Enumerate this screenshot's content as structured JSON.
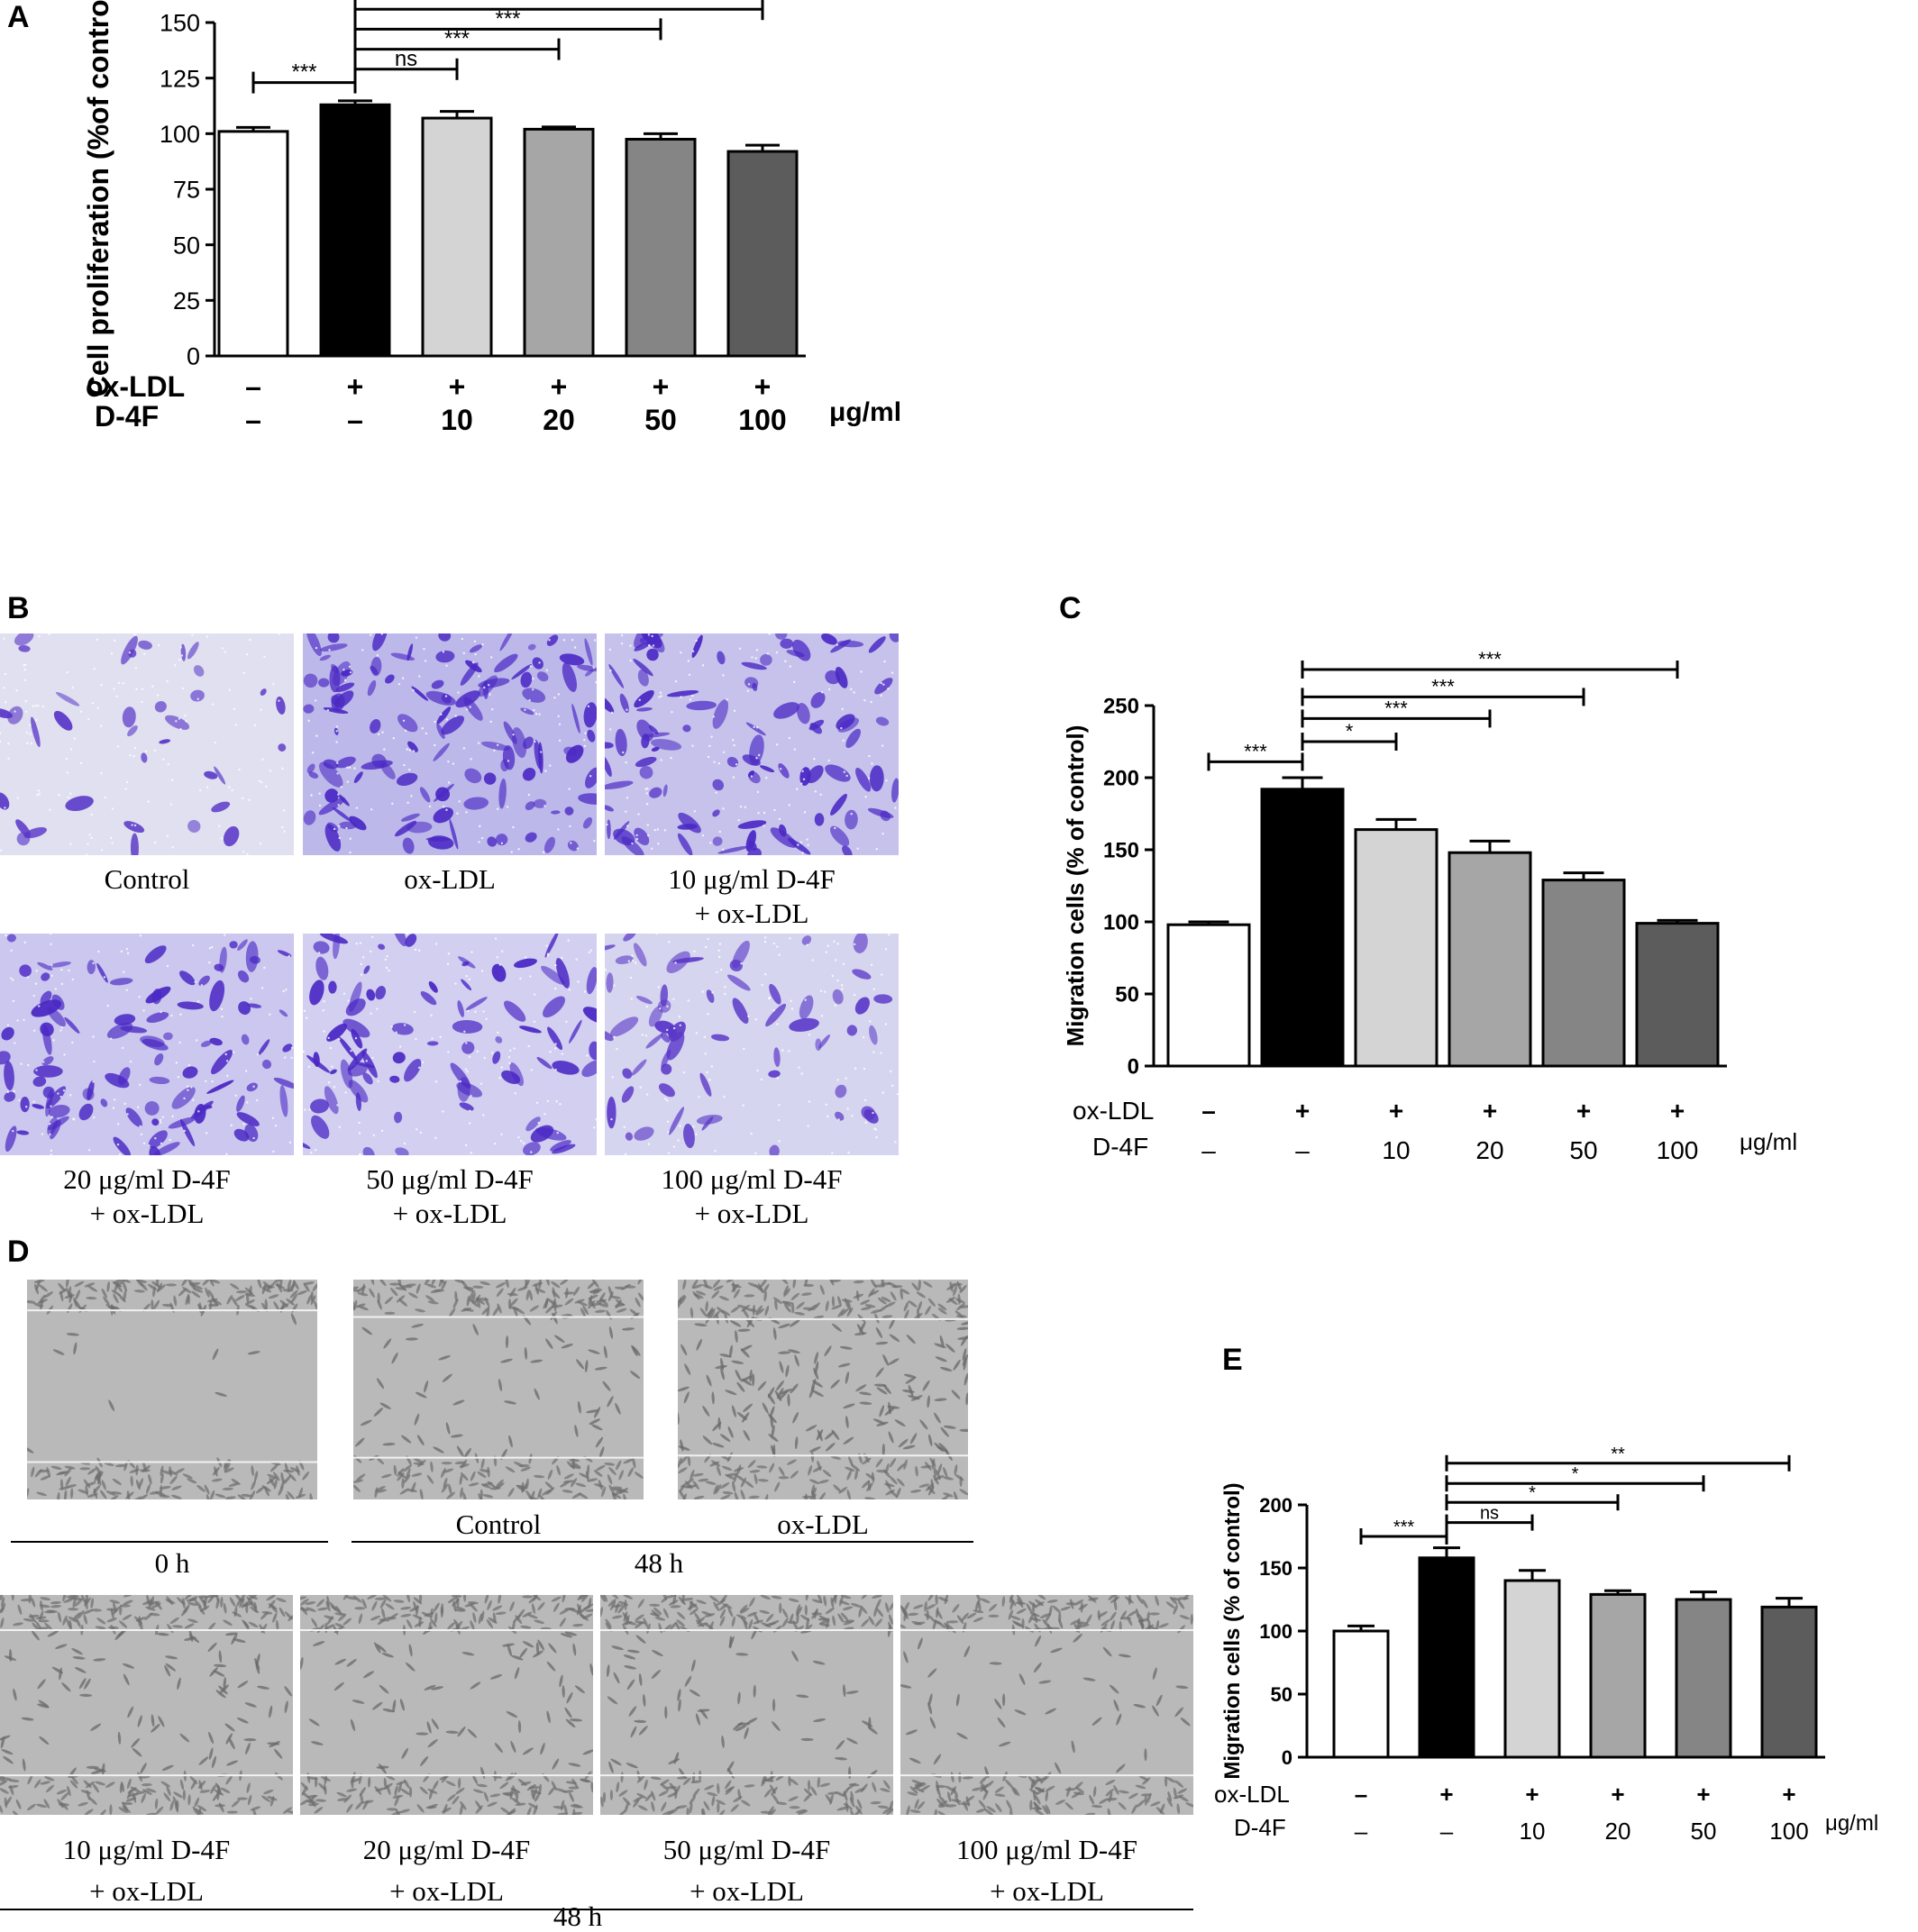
{
  "panels": {
    "A": "A",
    "B": "B",
    "C": "C",
    "D": "D",
    "E": "E"
  },
  "chart_data": [
    {
      "id": "A",
      "type": "bar",
      "ylabel": "Cell proliferation (%of control)",
      "ylim": [
        0,
        150
      ],
      "yticks": [
        0,
        25,
        50,
        75,
        100,
        125,
        150
      ],
      "values": [
        101,
        113,
        107,
        102,
        97.5,
        92
      ],
      "errors": [
        1.8,
        1.8,
        3,
        1,
        2.5,
        2.8
      ],
      "colors": [
        "#ffffff",
        "#000000",
        "#d4d4d4",
        "#a6a6a6",
        "#858585",
        "#5c5c5c"
      ],
      "row_labels": [
        "ox-LDL",
        "D-4F"
      ],
      "oxldl": [
        "–",
        "+",
        "+",
        "+",
        "+",
        "+"
      ],
      "d4f": [
        "–",
        "–",
        "10",
        "20",
        "50",
        "100"
      ],
      "unit": "μg/ml",
      "brackets": [
        {
          "from": 0,
          "to": 1,
          "label": "***",
          "y": 123
        },
        {
          "from": 1,
          "to": 2,
          "label": "ns",
          "y": 129
        },
        {
          "from": 1,
          "to": 3,
          "label": "***",
          "y": 138
        },
        {
          "from": 1,
          "to": 4,
          "label": "***",
          "y": 147
        },
        {
          "from": 1,
          "to": 5,
          "label": "***",
          "y": 156
        }
      ]
    },
    {
      "id": "C",
      "type": "bar",
      "ylabel": "Migration cells (% of control)",
      "ylim": [
        0,
        250
      ],
      "yticks": [
        0,
        50,
        100,
        150,
        200,
        250
      ],
      "values": [
        98,
        192,
        164,
        148,
        129,
        99
      ],
      "errors": [
        2,
        8,
        7,
        8,
        5,
        2
      ],
      "colors": [
        "#ffffff",
        "#000000",
        "#d4d4d4",
        "#a6a6a6",
        "#858585",
        "#5c5c5c"
      ],
      "row_labels": [
        "ox-LDL",
        "D-4F"
      ],
      "oxldl": [
        "–",
        "+",
        "+",
        "+",
        "+",
        "+"
      ],
      "d4f": [
        "–",
        "–",
        "10",
        "20",
        "50",
        "100"
      ],
      "unit": "μg/ml",
      "brackets": [
        {
          "from": 0,
          "to": 1,
          "label": "***",
          "y": 211
        },
        {
          "from": 1,
          "to": 2,
          "label": "*",
          "y": 225
        },
        {
          "from": 1,
          "to": 3,
          "label": "***",
          "y": 241
        },
        {
          "from": 1,
          "to": 4,
          "label": "***",
          "y": 256
        },
        {
          "from": 1,
          "to": 5,
          "label": "***",
          "y": 275
        }
      ]
    },
    {
      "id": "E",
      "type": "bar",
      "ylabel": "Migration cells (% of control)",
      "ylim": [
        0,
        200
      ],
      "yticks": [
        0,
        50,
        100,
        150,
        200
      ],
      "values": [
        100,
        158,
        140,
        129,
        125,
        119
      ],
      "errors": [
        4,
        8,
        8,
        3,
        6,
        7
      ],
      "colors": [
        "#ffffff",
        "#000000",
        "#d4d4d4",
        "#a6a6a6",
        "#858585",
        "#5c5c5c"
      ],
      "row_labels": [
        "ox-LDL",
        "D-4F"
      ],
      "oxldl": [
        "–",
        "+",
        "+",
        "+",
        "+",
        "+"
      ],
      "d4f": [
        "–",
        "–",
        "10",
        "20",
        "50",
        "100"
      ],
      "unit": "μg/ml",
      "brackets": [
        {
          "from": 0,
          "to": 1,
          "label": "***",
          "y": 175
        },
        {
          "from": 1,
          "to": 2,
          "label": "ns",
          "y": 186
        },
        {
          "from": 1,
          "to": 3,
          "label": "*",
          "y": 202
        },
        {
          "from": 1,
          "to": 4,
          "label": "*",
          "y": 217
        },
        {
          "from": 1,
          "to": 5,
          "label": "**",
          "y": 233
        }
      ]
    }
  ],
  "panelB": {
    "captions": [
      {
        "l1": "Control",
        "l2": ""
      },
      {
        "l1": "ox-LDL",
        "l2": ""
      },
      {
        "l1": "10 μg/ml D-4F",
        "l2": "+ ox-LDL"
      },
      {
        "l1": "20 μg/ml D-4F",
        "l2": "+ ox-LDL"
      },
      {
        "l1": "50 μg/ml D-4F",
        "l2": "+ ox-LDL"
      },
      {
        "l1": "100 μg/ml D-4F",
        "l2": "+ ox-LDL"
      }
    ]
  },
  "panelD": {
    "top": {
      "t0": "0 h",
      "t48": "48 h",
      "control": "Control",
      "oxldl": "ox-LDL"
    },
    "bottom": [
      {
        "l1": "10 μg/ml D-4F",
        "l2": "+ ox-LDL"
      },
      {
        "l1": "20 μg/ml D-4F",
        "l2": "+ ox-LDL"
      },
      {
        "l1": "50 μg/ml D-4F",
        "l2": "+ ox-LDL"
      },
      {
        "l1": "100 μg/ml D-4F",
        "l2": "+ ox-LDL"
      }
    ],
    "bottom_time": "48 h"
  }
}
